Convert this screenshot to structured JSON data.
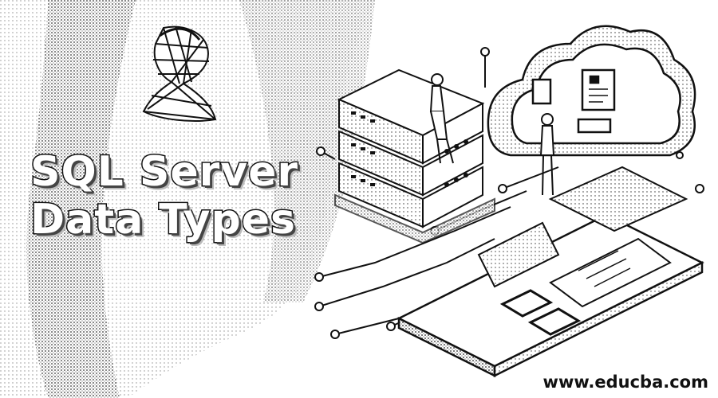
{
  "banner": {
    "title_line_1": "SQL Server",
    "title_line_2": "Data Types",
    "watermark": "www.educba.com"
  },
  "colors": {
    "ink": "#111111",
    "background": "#ffffff",
    "gray": "#bdbdbd"
  },
  "icons": {
    "logo": "sql-server-logo-icon",
    "servers": "server-stack-icon",
    "cloud": "cloud-icon",
    "person_sitting": "person-sitting-icon",
    "person_standing": "person-standing-icon",
    "circuit": "circuit-lines-icon",
    "board": "platform-board-icon"
  }
}
